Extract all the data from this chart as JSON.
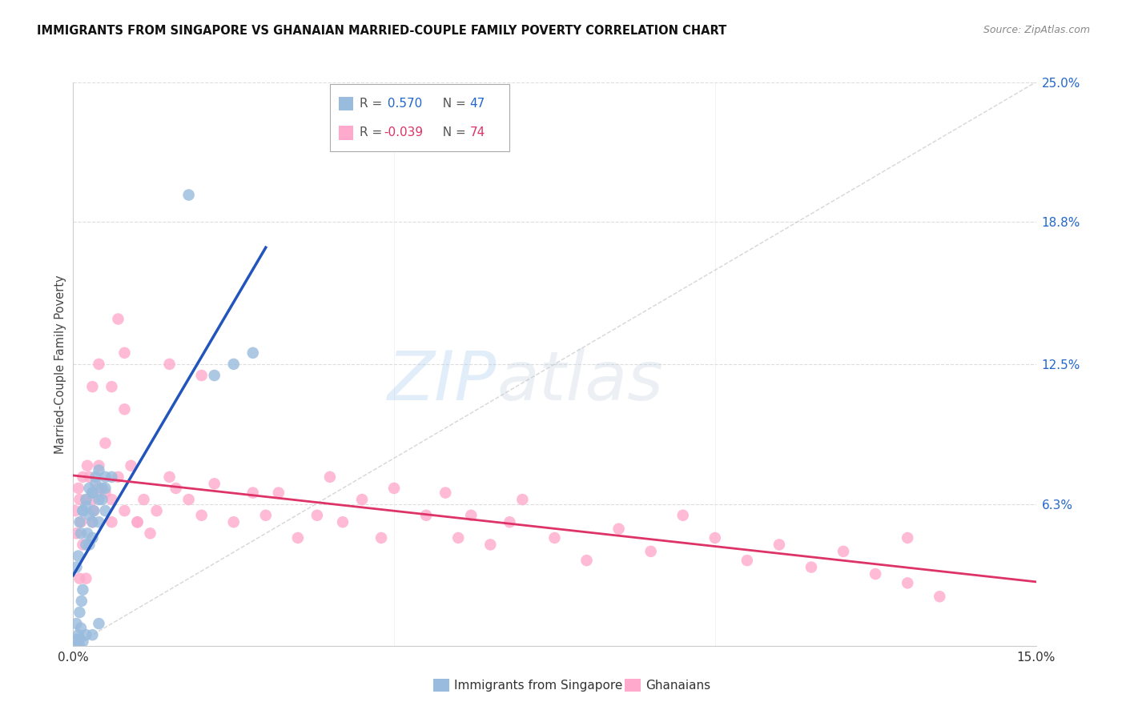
{
  "title": "IMMIGRANTS FROM SINGAPORE VS GHANAIAN MARRIED-COUPLE FAMILY POVERTY CORRELATION CHART",
  "source": "Source: ZipAtlas.com",
  "ylabel": "Married-Couple Family Poverty",
  "xlim": [
    0.0,
    0.15
  ],
  "ylim": [
    -0.005,
    0.265
  ],
  "plot_ylim": [
    0.0,
    0.25
  ],
  "ytick_values_right": [
    0.063,
    0.125,
    0.188,
    0.25
  ],
  "ytick_labels_right": [
    "6.3%",
    "12.5%",
    "18.8%",
    "25.0%"
  ],
  "grid_color": "#dddddd",
  "background_color": "#ffffff",
  "series1_color": "#99bbdd",
  "series2_color": "#ffaacc",
  "trendline1_color": "#2255bb",
  "trendline2_color": "#dd3366",
  "legend_label1": "Immigrants from Singapore",
  "legend_label2": "Ghanaians",
  "singapore_x": [
    0.0003,
    0.0005,
    0.0005,
    0.0008,
    0.001,
    0.001,
    0.001,
    0.0012,
    0.0013,
    0.0015,
    0.0015,
    0.0015,
    0.002,
    0.002,
    0.002,
    0.0022,
    0.0025,
    0.0025,
    0.003,
    0.003,
    0.003,
    0.003,
    0.0032,
    0.0035,
    0.004,
    0.004,
    0.004,
    0.0045,
    0.005,
    0.005,
    0.0005,
    0.0008,
    0.001,
    0.0012,
    0.0015,
    0.002,
    0.0025,
    0.003,
    0.0035,
    0.004,
    0.0045,
    0.005,
    0.006,
    0.025,
    0.028,
    0.022,
    0.018
  ],
  "singapore_y": [
    0.0,
    0.003,
    0.01,
    0.005,
    0.0,
    0.003,
    0.015,
    0.008,
    0.02,
    0.002,
    0.025,
    0.06,
    0.005,
    0.045,
    0.065,
    0.05,
    0.045,
    0.07,
    0.005,
    0.048,
    0.055,
    0.068,
    0.06,
    0.075,
    0.01,
    0.055,
    0.065,
    0.07,
    0.06,
    0.075,
    0.035,
    0.04,
    0.055,
    0.05,
    0.06,
    0.062,
    0.058,
    0.068,
    0.072,
    0.078,
    0.065,
    0.07,
    0.075,
    0.125,
    0.13,
    0.12,
    0.2
  ],
  "ghana_x": [
    0.0003,
    0.0005,
    0.0008,
    0.001,
    0.001,
    0.0012,
    0.0015,
    0.0015,
    0.002,
    0.002,
    0.0022,
    0.0025,
    0.003,
    0.003,
    0.0032,
    0.004,
    0.004,
    0.005,
    0.005,
    0.006,
    0.006,
    0.007,
    0.007,
    0.008,
    0.008,
    0.009,
    0.01,
    0.011,
    0.012,
    0.013,
    0.015,
    0.016,
    0.018,
    0.02,
    0.022,
    0.025,
    0.028,
    0.03,
    0.032,
    0.035,
    0.038,
    0.04,
    0.042,
    0.045,
    0.048,
    0.05,
    0.055,
    0.058,
    0.06,
    0.062,
    0.065,
    0.068,
    0.07,
    0.075,
    0.08,
    0.085,
    0.09,
    0.095,
    0.1,
    0.105,
    0.11,
    0.115,
    0.12,
    0.125,
    0.13,
    0.135,
    0.003,
    0.004,
    0.006,
    0.008,
    0.01,
    0.015,
    0.02,
    0.13
  ],
  "ghana_y": [
    0.06,
    0.05,
    0.07,
    0.03,
    0.065,
    0.055,
    0.045,
    0.075,
    0.03,
    0.065,
    0.08,
    0.075,
    0.065,
    0.055,
    0.06,
    0.07,
    0.08,
    0.09,
    0.068,
    0.055,
    0.065,
    0.075,
    0.145,
    0.06,
    0.13,
    0.08,
    0.055,
    0.065,
    0.05,
    0.06,
    0.075,
    0.07,
    0.065,
    0.058,
    0.072,
    0.055,
    0.068,
    0.058,
    0.068,
    0.048,
    0.058,
    0.075,
    0.055,
    0.065,
    0.048,
    0.07,
    0.058,
    0.068,
    0.048,
    0.058,
    0.045,
    0.055,
    0.065,
    0.048,
    0.038,
    0.052,
    0.042,
    0.058,
    0.048,
    0.038,
    0.045,
    0.035,
    0.042,
    0.032,
    0.028,
    0.022,
    0.115,
    0.125,
    0.115,
    0.105,
    0.055,
    0.125,
    0.12,
    0.048
  ]
}
